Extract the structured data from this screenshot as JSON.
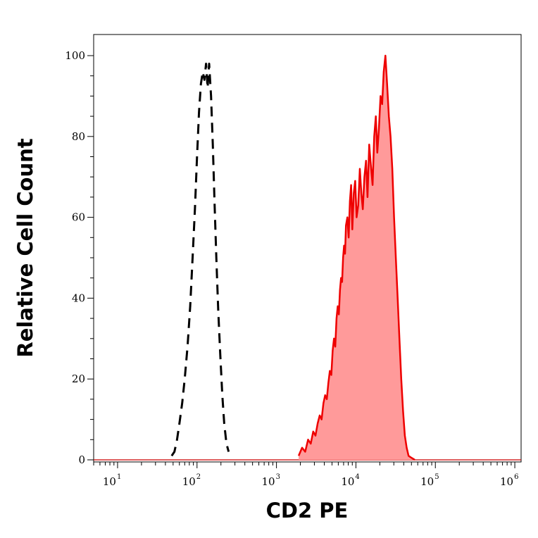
{
  "chart_data": {
    "type": "area",
    "title": "",
    "xlabel": "CD2 PE",
    "ylabel": "Relative Cell Count",
    "x_scale": "log",
    "xlim": [
      5,
      1200000
    ],
    "ylim": [
      0,
      100
    ],
    "x_ticks": [
      {
        "value": 10,
        "base": "10",
        "exp": "1"
      },
      {
        "value": 100,
        "base": "10",
        "exp": "2"
      },
      {
        "value": 1000,
        "base": "10",
        "exp": "3"
      },
      {
        "value": 10000,
        "base": "10",
        "exp": "4"
      },
      {
        "value": 100000,
        "base": "10",
        "exp": "5"
      },
      {
        "value": 1000000,
        "base": "10",
        "exp": "6"
      }
    ],
    "y_ticks": [
      "0",
      "20",
      "40",
      "60",
      "80",
      "100"
    ],
    "y_tick_values": [
      0,
      20,
      40,
      60,
      80,
      100
    ],
    "grid": false,
    "legend": "none",
    "series": [
      {
        "style": "dashed-outline",
        "color": "#000000",
        "x": [
          48,
          52,
          56,
          60,
          65,
          70,
          76,
          82,
          88,
          94,
          100,
          106,
          112,
          118,
          124,
          130,
          136,
          142,
          150,
          158,
          166,
          175,
          185,
          196,
          208,
          220,
          235,
          250
        ],
        "y": [
          1,
          2,
          5,
          9,
          14,
          20,
          28,
          38,
          50,
          62,
          75,
          86,
          93,
          96,
          94,
          98,
          92,
          98,
          90,
          78,
          64,
          50,
          37,
          26,
          16,
          9,
          4,
          2
        ]
      },
      {
        "style": "filled",
        "color": "#ee0000",
        "fill": "#ff9a9a",
        "x": [
          1900,
          2100,
          2300,
          2500,
          2700,
          2900,
          3100,
          3300,
          3500,
          3700,
          3900,
          4100,
          4300,
          4500,
          4700,
          4900,
          5100,
          5300,
          5500,
          5700,
          5900,
          6100,
          6300,
          6500,
          6700,
          6900,
          7100,
          7300,
          7500,
          7800,
          8100,
          8400,
          8700,
          9000,
          9400,
          9800,
          10200,
          10700,
          11200,
          11700,
          12200,
          12800,
          13400,
          14000,
          14700,
          15400,
          16200,
          17000,
          17800,
          18600,
          19500,
          20400,
          21400,
          22400,
          23500,
          24700,
          26000,
          27300,
          28700,
          30200,
          31800,
          33500,
          35300,
          37200,
          39200,
          41300,
          43500,
          46000,
          50000,
          55000
        ],
        "y": [
          1,
          3,
          2,
          5,
          4,
          7,
          6,
          9,
          11,
          10,
          14,
          16,
          15,
          19,
          22,
          21,
          27,
          30,
          28,
          35,
          38,
          36,
          42,
          45,
          44,
          50,
          53,
          51,
          58,
          60,
          55,
          64,
          68,
          57,
          66,
          69,
          60,
          63,
          72,
          66,
          62,
          70,
          74,
          65,
          78,
          73,
          68,
          80,
          85,
          76,
          82,
          90,
          88,
          96,
          100,
          93,
          85,
          80,
          72,
          60,
          50,
          40,
          30,
          20,
          12,
          6,
          3,
          1,
          0.5,
          0
        ]
      }
    ]
  }
}
